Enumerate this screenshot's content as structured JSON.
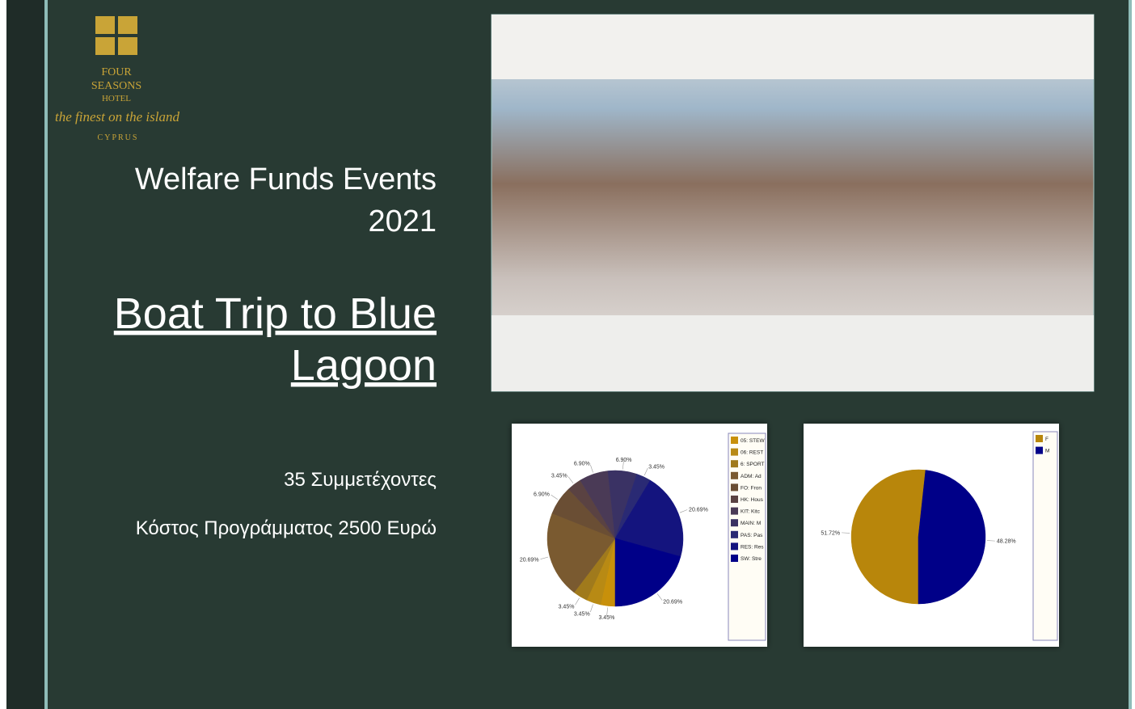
{
  "logo": {
    "brand": [
      "FOUR",
      "SEASONS"
    ],
    "kind": "HOTEL",
    "tagline": "the finest on the island",
    "location": "CYPRUS"
  },
  "title": [
    "Welfare Funds Events",
    "2021"
  ],
  "subtitle": [
    "Boat Trip to Blue",
    "Lagoon"
  ],
  "details": [
    "35 Συμμετέχοντες",
    "Κόστος Προγράμματος 2500 Ευρώ"
  ],
  "chart_data": [
    {
      "type": "pie",
      "categories": [
        "05: STEW",
        "06: REST",
        "6: SPORT",
        "ADM: Ad",
        "FO: Fron",
        "HK: Hous",
        "KIT: Kitc",
        "MAIN: M",
        "PAS: Pas",
        "RES: Res",
        "SW: Stre"
      ],
      "values": [
        3.45,
        3.45,
        3.45,
        20.69,
        6.9,
        3.45,
        6.9,
        6.9,
        3.45,
        20.69,
        20.69
      ],
      "value_labels": [
        "3.45%",
        "3.45%",
        "3.45%",
        "20.69%",
        "6.90%",
        "3.45%",
        "6.90%",
        "6.90%",
        "3.45%",
        "20.69%",
        "20.69%"
      ],
      "colors": [
        "#c8900a",
        "#b88a14",
        "#a07a1c",
        "#7a5a30",
        "#6a4e34",
        "#5a4242",
        "#4a3a56",
        "#3a3264",
        "#2a2a74",
        "#14147e",
        "#000088"
      ]
    },
    {
      "type": "pie",
      "categories": [
        "F",
        "M"
      ],
      "values": [
        51.72,
        48.28
      ],
      "value_labels": [
        "51.72%",
        "48.28%"
      ],
      "colors": [
        "#b8860b",
        "#000088"
      ]
    }
  ]
}
